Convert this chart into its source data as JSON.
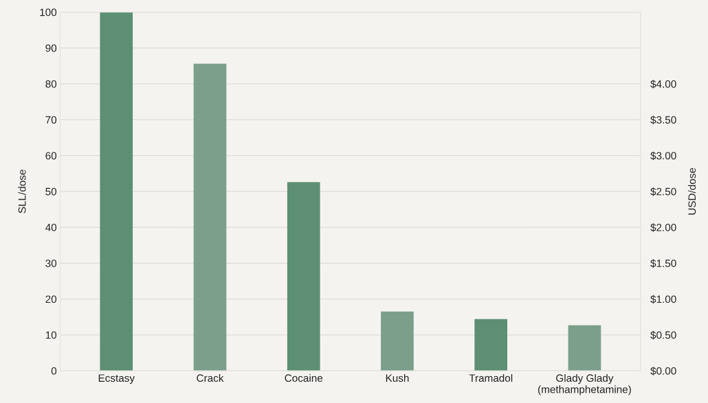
{
  "chart_data": {
    "type": "bar",
    "ylabel": "SLL/dose",
    "y2label": "USD/dose",
    "categories": [
      "Ecstasy",
      "Crack",
      "Cocaine",
      "Kush",
      "Tramadol",
      "Glady Glady\n(methamphetamine)"
    ],
    "values": [
      100,
      85.6,
      52.6,
      16.5,
      14.4,
      12.7
    ],
    "colors": [
      "#5d8f74",
      "#7b9f8a",
      "#5d8f74",
      "#7b9f8a",
      "#5d8f74",
      "#7b9f8a"
    ],
    "ylim": [
      0,
      100
    ],
    "yticks": [
      0,
      10,
      20,
      30,
      40,
      50,
      60,
      70,
      80,
      90,
      100
    ],
    "y2lim": [
      0,
      5
    ],
    "y2ticks": [
      {
        "value": 0,
        "label": "$0.00"
      },
      {
        "value": 0.5,
        "label": "$0.50"
      },
      {
        "value": 1,
        "label": "$1.00"
      },
      {
        "value": 1.5,
        "label": "$1.50"
      },
      {
        "value": 2,
        "label": "$2.00"
      },
      {
        "value": 2.5,
        "label": "$2.50"
      },
      {
        "value": 3,
        "label": "$3.00"
      },
      {
        "value": 3.5,
        "label": "$3.50"
      },
      {
        "value": 4,
        "label": "$4.00"
      }
    ],
    "grid": "y"
  }
}
